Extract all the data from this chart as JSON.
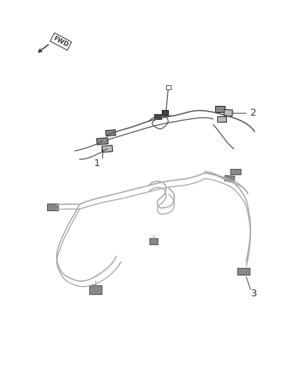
{
  "background_color": "#ffffff",
  "wire_color_dark": "#555555",
  "wire_color_light": "#aaaaaa",
  "connector_color": "#888888",
  "fig_width": 4.38,
  "fig_height": 5.33,
  "dpi": 100,
  "label_1": "1",
  "label_2": "2",
  "label_3": "3",
  "fwd_text": "FWD"
}
